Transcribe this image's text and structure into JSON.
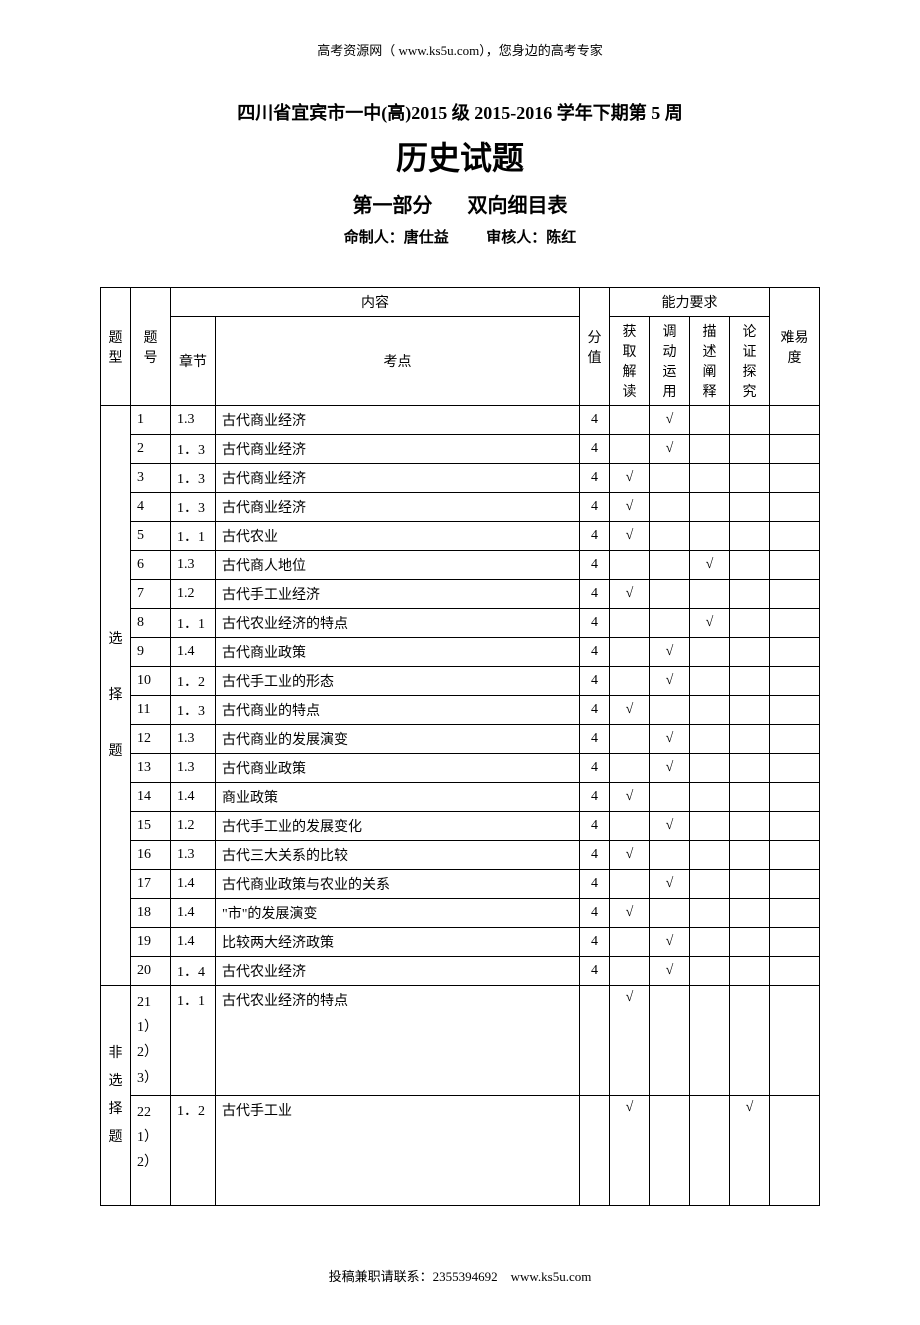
{
  "header_note": "高考资源网（ www.ks5u.com），您身边的高考专家",
  "title": {
    "line1": "四川省宜宾市一中(高)2015 级 2015-2016 学年下期第 5 周",
    "line2": "历史试题",
    "part1": "第一部分",
    "part2": "双向细目表"
  },
  "authors": {
    "author1_label": "命制人：",
    "author1_name": "唐仕益",
    "author2_label": "审核人：",
    "author2_name": "陈红"
  },
  "table": {
    "headers": {
      "type": "题型",
      "num": "题号",
      "content": "内容",
      "chapter": "章节",
      "topic": "考点",
      "score": "分值",
      "ability": "能力要求",
      "skill1": "获取解读",
      "skill2": "调动运用",
      "skill3": "描述阐释",
      "skill4": "论证探究",
      "difficulty": "难易度"
    },
    "type1": "选择题",
    "type2": "非选择题",
    "check": "√",
    "rows": [
      {
        "num": "1",
        "chapter": "1.3",
        "topic": "古代商业经济",
        "score": "4",
        "s1": "",
        "s2": "√",
        "s3": "",
        "s4": "",
        "diff": ""
      },
      {
        "num": "2",
        "chapter": "1．3",
        "topic": "古代商业经济",
        "score": "4",
        "s1": "",
        "s2": "√",
        "s3": "",
        "s4": "",
        "diff": ""
      },
      {
        "num": "3",
        "chapter": "1．3",
        "topic": "古代商业经济",
        "score": "4",
        "s1": "√",
        "s2": "",
        "s3": "",
        "s4": "",
        "diff": ""
      },
      {
        "num": "4",
        "chapter": "1．3",
        "topic": "古代商业经济",
        "score": "4",
        "s1": "√",
        "s2": "",
        "s3": "",
        "s4": "",
        "diff": ""
      },
      {
        "num": "5",
        "chapter": "1．1",
        "topic": "古代农业",
        "score": "4",
        "s1": "√",
        "s2": "",
        "s3": "",
        "s4": "",
        "diff": ""
      },
      {
        "num": "6",
        "chapter": "1.3",
        "topic": "古代商人地位",
        "score": "4",
        "s1": "",
        "s2": "",
        "s3": "√",
        "s4": "",
        "diff": ""
      },
      {
        "num": "7",
        "chapter": "1.2",
        "topic": "古代手工业经济",
        "score": "4",
        "s1": "√",
        "s2": "",
        "s3": "",
        "s4": "",
        "diff": ""
      },
      {
        "num": "8",
        "chapter": "1．1",
        "topic": "古代农业经济的特点",
        "score": "4",
        "s1": "",
        "s2": "",
        "s3": "√",
        "s4": "",
        "diff": ""
      },
      {
        "num": "9",
        "chapter": "1.4",
        "topic": "古代商业政策",
        "score": "4",
        "s1": "",
        "s2": "√",
        "s3": "",
        "s4": "",
        "diff": ""
      },
      {
        "num": "10",
        "chapter": "1．2",
        "topic": "古代手工业的形态",
        "score": "4",
        "s1": "",
        "s2": "√",
        "s3": "",
        "s4": "",
        "diff": ""
      },
      {
        "num": "11",
        "chapter": "1．3",
        "topic": "古代商业的特点",
        "score": "4",
        "s1": "√",
        "s2": "",
        "s3": "",
        "s4": "",
        "diff": ""
      },
      {
        "num": "12",
        "chapter": "1.3",
        "topic": "古代商业的发展演变",
        "score": "4",
        "s1": "",
        "s2": "√",
        "s3": "",
        "s4": "",
        "diff": ""
      },
      {
        "num": "13",
        "chapter": "1.3",
        "topic": "古代商业政策",
        "score": "4",
        "s1": "",
        "s2": "√",
        "s3": "",
        "s4": "",
        "diff": ""
      },
      {
        "num": "14",
        "chapter": "1.4",
        "topic": "商业政策",
        "score": "4",
        "s1": "√",
        "s2": "",
        "s3": "",
        "s4": "",
        "diff": ""
      },
      {
        "num": "15",
        "chapter": "1.2",
        "topic": "古代手工业的发展变化",
        "score": "4",
        "s1": "",
        "s2": "√",
        "s3": "",
        "s4": "",
        "diff": ""
      },
      {
        "num": "16",
        "chapter": "1.3",
        "topic": "古代三大关系的比较",
        "score": "4",
        "s1": "√",
        "s2": "",
        "s3": "",
        "s4": "",
        "diff": ""
      },
      {
        "num": "17",
        "chapter": "1.4",
        "topic": "古代商业政策与农业的关系",
        "score": "4",
        "s1": "",
        "s2": "√",
        "s3": "",
        "s4": "",
        "diff": ""
      },
      {
        "num": "18",
        "chapter": "1.4",
        "topic": "\"市\"的发展演变",
        "score": "4",
        "s1": "√",
        "s2": "",
        "s3": "",
        "s4": "",
        "diff": ""
      },
      {
        "num": "19",
        "chapter": "1.4",
        "topic": "比较两大经济政策",
        "score": "4",
        "s1": "",
        "s2": "√",
        "s3": "",
        "s4": "",
        "diff": ""
      },
      {
        "num": "20",
        "chapter": "1．4",
        "topic": "古代农业经济",
        "score": "4",
        "s1": "",
        "s2": "√",
        "s3": "",
        "s4": "",
        "diff": ""
      }
    ],
    "essay_rows": [
      {
        "num": "21\n1）\n2）\n3）",
        "chapter": "1．1",
        "topic": "古代农业经济的特点",
        "score": "",
        "s1": "√",
        "s2": "",
        "s3": "",
        "s4": "",
        "diff": ""
      },
      {
        "num": "22\n1）\n2）",
        "chapter": "1．2",
        "topic": "古代手工业",
        "score": "",
        "s1": "√",
        "s2": "",
        "s3": "",
        "s4": "√",
        "diff": ""
      }
    ]
  },
  "footer_note": "投稿兼职请联系：2355394692　www.ks5u.com"
}
